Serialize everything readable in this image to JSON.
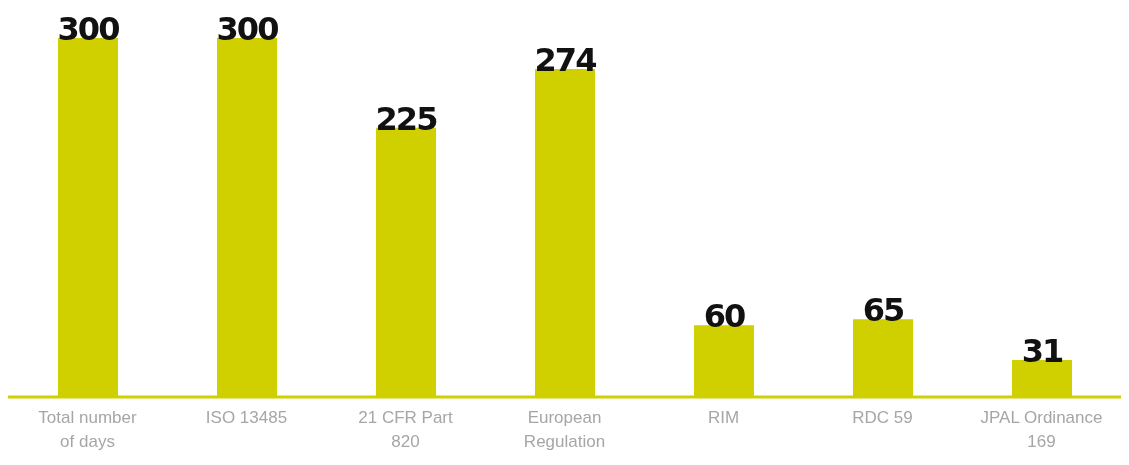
{
  "chart_data": {
    "type": "bar",
    "categories": [
      "Total number of days",
      "ISO 13485",
      "21 CFR Part 820",
      "European Regulation",
      "RIM",
      "RDC 59",
      "JPAL Ordinance 169"
    ],
    "values": [
      300,
      300,
      225,
      274,
      60,
      65,
      31
    ],
    "color": "#d0cf00",
    "data_labels": true,
    "grid": false,
    "legend": false
  }
}
